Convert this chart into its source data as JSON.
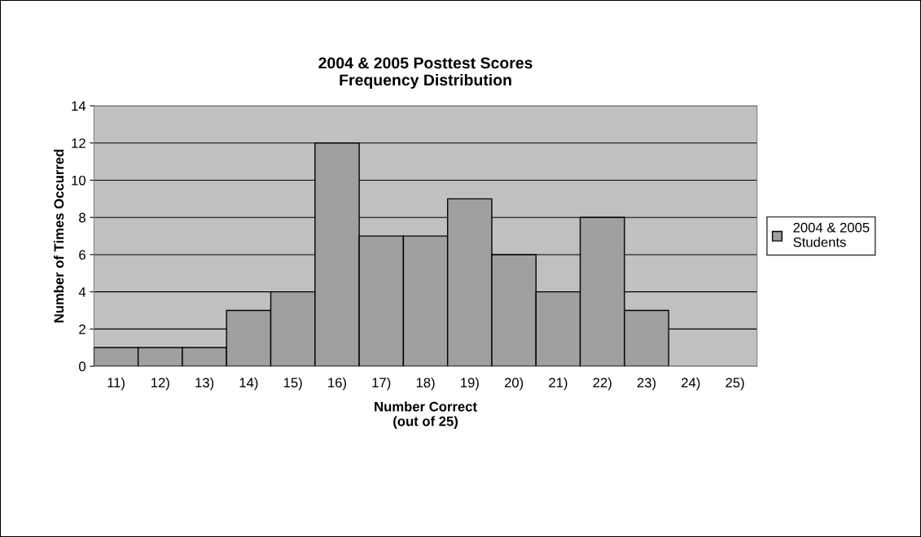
{
  "chart_data": {
    "type": "bar",
    "title": "2004 & 2005 Posttest Scores\nFrequency Distribution",
    "xlabel": "Number Correct\n(out of 25)",
    "ylabel": "Number of Times Occurred",
    "categories": [
      "11)",
      "12)",
      "13)",
      "14)",
      "15)",
      "16)",
      "17)",
      "18)",
      "19)",
      "20)",
      "21)",
      "22)",
      "23)",
      "24)",
      "25)"
    ],
    "series": [
      {
        "name": "2004 & 2005\nStudents",
        "color": "#a0a0a0",
        "values": [
          1,
          1,
          1,
          3,
          4,
          12,
          7,
          7,
          9,
          6,
          4,
          8,
          3,
          0,
          0
        ]
      }
    ],
    "ylim": [
      0,
      14
    ],
    "yticks": [
      0,
      2,
      4,
      6,
      8,
      10,
      12,
      14
    ],
    "grid": "y",
    "legend": "right"
  }
}
